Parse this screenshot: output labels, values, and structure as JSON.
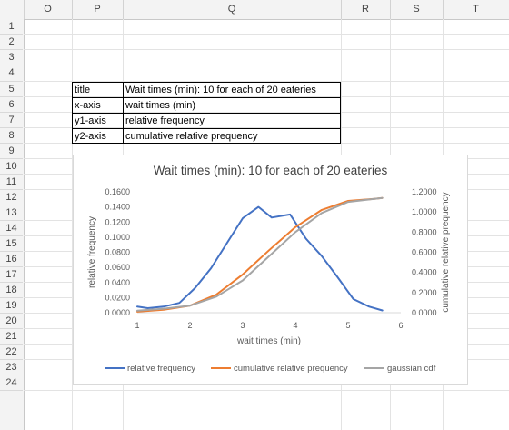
{
  "sheet": {
    "columns": [
      "O",
      "P",
      "Q",
      "R",
      "S",
      "T"
    ],
    "rows": [
      "1",
      "2",
      "3",
      "4",
      "5",
      "6",
      "7",
      "8",
      "9",
      "10",
      "11",
      "12",
      "13",
      "14",
      "15",
      "16",
      "17",
      "18",
      "19",
      "20",
      "21",
      "22",
      "23",
      "24"
    ]
  },
  "table": [
    {
      "key": "title",
      "value": "Wait times (min): 10 for each of 20 eateries"
    },
    {
      "key": "x-axis",
      "value": "wait times (min)"
    },
    {
      "key": "y1-axis",
      "value": "relative frequency"
    },
    {
      "key": "y2-axis",
      "value": "cumulative relative prequency"
    }
  ],
  "chart_data": {
    "type": "line",
    "title": "Wait times (min): 10 for each of 20 eateries",
    "xlabel": "wait times (min)",
    "ylabel": "relative frequency",
    "y2label": "cumulative relative prequency",
    "xlim": [
      1,
      6
    ],
    "ylim": [
      0,
      0.16
    ],
    "y2lim": [
      0,
      1.2
    ],
    "x_ticks": [
      "1",
      "2",
      "3",
      "4",
      "5",
      "6"
    ],
    "y_ticks": [
      "0.0000",
      "0.0200",
      "0.0400",
      "0.0600",
      "0.0800",
      "0.1000",
      "0.1200",
      "0.1400",
      "0.1600"
    ],
    "y2_ticks": [
      "0.0000",
      "0.2000",
      "0.4000",
      "0.6000",
      "0.8000",
      "1.0000",
      "1.2000"
    ],
    "legend_position": "bottom",
    "grid": false,
    "series": [
      {
        "name": "relative frequency",
        "axis": "y1",
        "color": "#4472c4",
        "x": [
          1.0,
          1.2,
          1.5,
          1.8,
          2.1,
          2.4,
          2.7,
          3.0,
          3.3,
          3.55,
          3.9,
          4.2,
          4.5,
          4.8,
          5.1,
          5.4,
          5.65
        ],
        "y": [
          0.008,
          0.006,
          0.008,
          0.013,
          0.033,
          0.059,
          0.092,
          0.125,
          0.14,
          0.126,
          0.13,
          0.098,
          0.075,
          0.047,
          0.018,
          0.008,
          0.003
        ]
      },
      {
        "name": "cumulative relative prequency",
        "axis": "y2",
        "color": "#ed7d31",
        "x": [
          1.0,
          1.5,
          2.0,
          2.5,
          3.0,
          3.5,
          4.0,
          4.5,
          5.0,
          5.5,
          5.65
        ],
        "y": [
          0.01,
          0.03,
          0.07,
          0.18,
          0.38,
          0.62,
          0.85,
          1.02,
          1.11,
          1.13,
          1.14
        ]
      },
      {
        "name": "gaussian cdf",
        "axis": "y2",
        "color": "#a5a5a5",
        "x": [
          1.0,
          1.5,
          2.0,
          2.5,
          3.0,
          3.5,
          4.0,
          4.5,
          5.0,
          5.5,
          5.65
        ],
        "y": [
          0.02,
          0.04,
          0.07,
          0.16,
          0.32,
          0.56,
          0.8,
          0.99,
          1.1,
          1.13,
          1.14
        ]
      }
    ]
  }
}
